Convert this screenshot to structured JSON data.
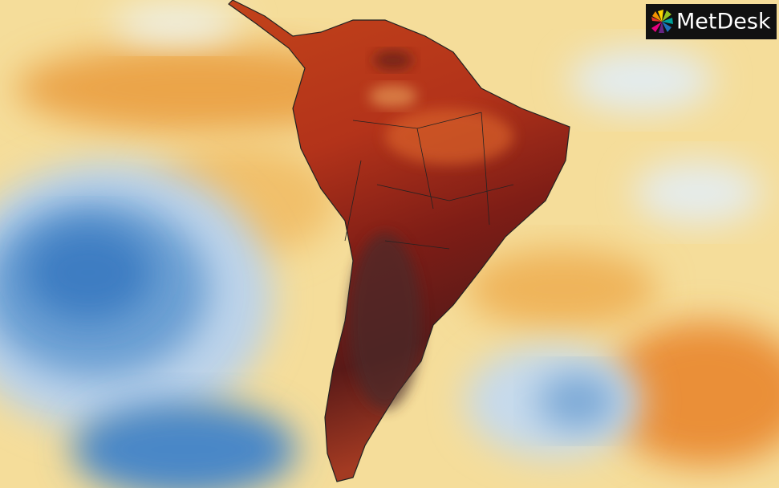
{
  "logo": {
    "text": "MetDesk"
  }
}
